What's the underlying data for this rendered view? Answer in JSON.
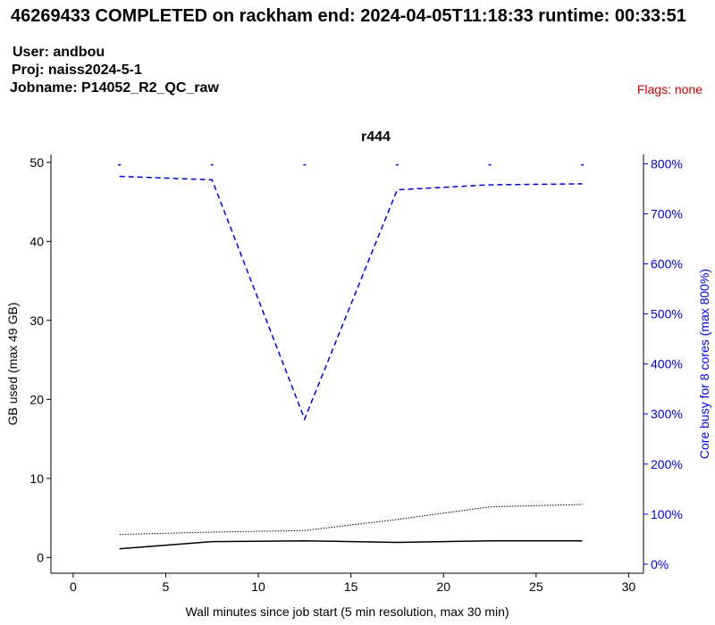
{
  "header": {
    "title": "46269433 COMPLETED on rackham  end: 2024-04-05T11:18:33  runtime: 00:33:51",
    "user": "User: andbou",
    "proj": "Proj: naiss2024-5-1",
    "jobname": "Jobname: P14052_R2_QC_raw",
    "flags": "Flags: none"
  },
  "colors": {
    "axis": "#000000",
    "core_busy": "#0000dd",
    "memory_used": "#000000",
    "flags": "#cc0000"
  },
  "chart_data": {
    "type": "line",
    "title": "r444",
    "xlabel": "Wall minutes since job start (5 min resolution, max 30 min)",
    "ylabel_left": "GB used (max 49 GB)",
    "ylabel_right": "Core busy for 8 cores (max 800%)",
    "xlim": [
      -1.2,
      30.8
    ],
    "ylim_left": [
      -2,
      51
    ],
    "ylim_right": [
      -18,
      818.7
    ],
    "x_ticks": [
      0,
      5,
      10,
      15,
      20,
      25,
      30
    ],
    "y_ticks_left": [
      0,
      10,
      20,
      30,
      40,
      50
    ],
    "y_ticks_right": [
      0,
      100,
      200,
      300,
      400,
      500,
      600,
      700,
      800
    ],
    "y_ticks_right_labels": [
      "0%",
      "100%",
      "200%",
      "300%",
      "400%",
      "500%",
      "600%",
      "700%",
      "800%"
    ],
    "grid": false,
    "x": [
      2.5,
      7.5,
      12.5,
      17.5,
      22.5,
      27.5
    ],
    "series": [
      {
        "axis": "left",
        "style": "solid",
        "values": [
          1.1,
          2.0,
          2.1,
          1.9,
          2.1,
          2.1
        ]
      },
      {
        "axis": "left",
        "style": "dotted",
        "values": [
          2.9,
          3.2,
          3.4,
          4.8,
          6.4,
          6.7
        ]
      },
      {
        "axis": "right",
        "style": "dashed",
        "values": [
          775,
          768,
          290,
          748,
          758,
          760
        ]
      },
      {
        "axis": "right",
        "style": "markers",
        "values": [
          798,
          798,
          798,
          798,
          798,
          798
        ]
      }
    ]
  }
}
